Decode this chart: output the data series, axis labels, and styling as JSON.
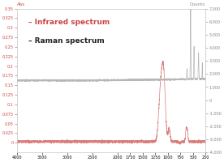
{
  "title_left": "Abs",
  "title_right": "Counts",
  "xlim": [
    4000,
    250
  ],
  "ylim_left": [
    -0.025,
    0.35
  ],
  "ylim_right": [
    -4000,
    7000
  ],
  "xticks": [
    4000,
    3500,
    3000,
    2500,
    2000,
    1750,
    1500,
    1250,
    1000,
    750,
    500,
    250
  ],
  "yticks_left": [
    0,
    0.025,
    0.05,
    0.075,
    0.1,
    0.125,
    0.15,
    0.175,
    0.2,
    0.225,
    0.25,
    0.275,
    0.3,
    0.325,
    0.35
  ],
  "yticks_right": [
    -4000,
    -3000,
    -2000,
    -1000,
    0,
    1000,
    2000,
    3000,
    4000,
    5000,
    6000,
    7000
  ],
  "ir_color": "#cc4444",
  "raman_color": "#aaaaaa",
  "legend_ir": "– Infrared spectrum",
  "legend_raman": "– Raman spectrum",
  "background": "#ffffff"
}
